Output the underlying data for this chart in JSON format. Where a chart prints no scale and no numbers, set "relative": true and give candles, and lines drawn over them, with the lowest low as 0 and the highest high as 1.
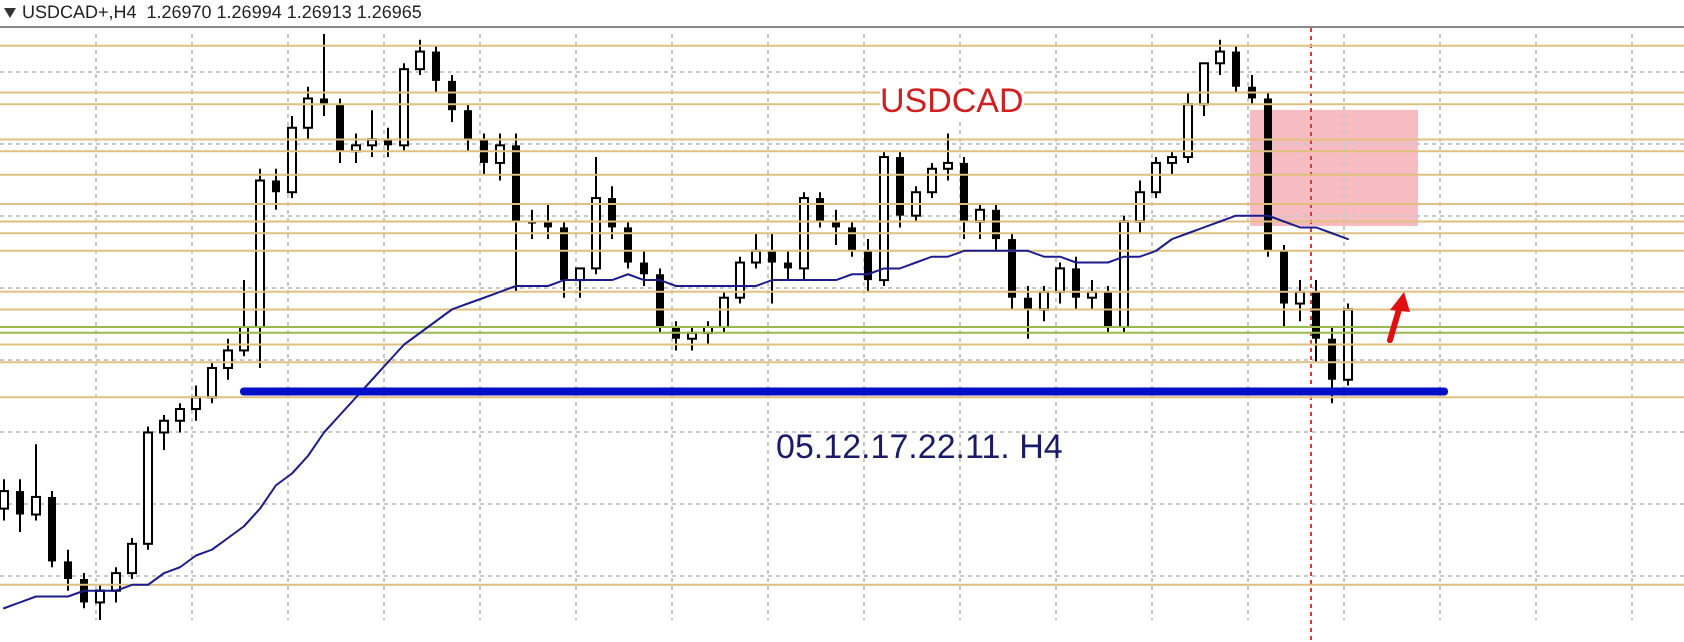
{
  "chart_data": {
    "type": "candlestick",
    "title": "USDCAD+,H4  1.26970 1.26994 1.26913 1.26965",
    "relative": true,
    "grid": true,
    "color": "#000000",
    "categories": [
      null,
      null,
      null,
      null,
      null,
      null,
      null,
      null,
      null,
      null,
      null,
      null,
      null,
      null,
      null,
      null,
      null,
      null,
      null,
      null,
      null,
      null,
      null,
      null,
      null,
      null,
      null,
      null,
      null,
      null,
      null,
      null,
      null,
      null,
      null,
      null,
      null,
      null,
      null,
      null,
      null,
      null,
      null,
      null,
      null,
      null,
      null,
      null,
      null,
      null,
      null,
      null,
      null,
      null,
      null,
      null,
      null,
      null,
      null,
      null,
      null,
      null,
      null,
      null,
      null,
      null,
      null,
      null,
      null,
      null,
      null,
      null,
      null,
      null,
      null,
      null,
      null,
      null,
      null,
      null,
      null,
      null,
      null,
      null,
      null,
      null,
      null,
      null,
      null,
      null,
      null
    ],
    "ohlc": [
      [
        0.19,
        0.24,
        0.17,
        0.22
      ],
      [
        0.22,
        0.24,
        0.15,
        0.18
      ],
      [
        0.18,
        0.3,
        0.17,
        0.21
      ],
      [
        0.21,
        0.22,
        0.09,
        0.1
      ],
      [
        0.1,
        0.12,
        0.05,
        0.07
      ],
      [
        0.07,
        0.08,
        0.02,
        0.03
      ],
      [
        0.03,
        0.06,
        0,
        0.05
      ],
      [
        0.05,
        0.09,
        0.03,
        0.08
      ],
      [
        0.08,
        0.14,
        0.07,
        0.13
      ],
      [
        0.13,
        0.33,
        0.12,
        0.32
      ],
      [
        0.32,
        0.35,
        0.29,
        0.34
      ],
      [
        0.34,
        0.37,
        0.32,
        0.36
      ],
      [
        0.36,
        0.4,
        0.34,
        0.38
      ],
      [
        0.38,
        0.44,
        0.37,
        0.43
      ],
      [
        0.43,
        0.48,
        0.41,
        0.46
      ],
      [
        0.46,
        0.58,
        0.45,
        0.5
      ],
      [
        0.5,
        0.77,
        0.43,
        0.75
      ],
      [
        0.75,
        0.77,
        0.7,
        0.73
      ],
      [
        0.73,
        0.86,
        0.72,
        0.84
      ],
      [
        0.84,
        0.91,
        0.82,
        0.89
      ],
      [
        0.89,
        1.0,
        0.86,
        0.88
      ],
      [
        0.88,
        0.89,
        0.78,
        0.8
      ],
      [
        0.8,
        0.83,
        0.78,
        0.81
      ],
      [
        0.81,
        0.87,
        0.79,
        0.82
      ],
      [
        0.82,
        0.84,
        0.79,
        0.81
      ],
      [
        0.81,
        0.95,
        0.8,
        0.94
      ],
      [
        0.94,
        0.99,
        0.93,
        0.97
      ],
      [
        0.97,
        0.98,
        0.9,
        0.92
      ],
      [
        0.92,
        0.93,
        0.85,
        0.87
      ],
      [
        0.87,
        0.88,
        0.8,
        0.82
      ],
      [
        0.82,
        0.83,
        0.76,
        0.78
      ],
      [
        0.78,
        0.83,
        0.75,
        0.81
      ],
      [
        0.81,
        0.83,
        0.56,
        0.68
      ],
      [
        0.68,
        0.7,
        0.65,
        0.68
      ],
      [
        0.68,
        0.71,
        0.65,
        0.67
      ],
      [
        0.67,
        0.68,
        0.55,
        0.58
      ],
      [
        0.58,
        0.6,
        0.55,
        0.6
      ],
      [
        0.6,
        0.79,
        0.59,
        0.72
      ],
      [
        0.72,
        0.74,
        0.65,
        0.67
      ],
      [
        0.67,
        0.68,
        0.6,
        0.61
      ],
      [
        0.61,
        0.63,
        0.57,
        0.59
      ],
      [
        0.59,
        0.6,
        0.49,
        0.5
      ],
      [
        0.5,
        0.51,
        0.46,
        0.48
      ],
      [
        0.48,
        0.5,
        0.46,
        0.49
      ],
      [
        0.49,
        0.51,
        0.47,
        0.5
      ],
      [
        0.5,
        0.56,
        0.49,
        0.55
      ],
      [
        0.55,
        0.62,
        0.54,
        0.61
      ],
      [
        0.61,
        0.66,
        0.6,
        0.63
      ],
      [
        0.63,
        0.66,
        0.54,
        0.61
      ],
      [
        0.61,
        0.63,
        0.58,
        0.6
      ],
      [
        0.6,
        0.73,
        0.58,
        0.72
      ],
      [
        0.72,
        0.73,
        0.67,
        0.68
      ],
      [
        0.68,
        0.7,
        0.64,
        0.67
      ],
      [
        0.67,
        0.68,
        0.62,
        0.63
      ],
      [
        0.63,
        0.65,
        0.56,
        0.58
      ],
      [
        0.58,
        0.8,
        0.57,
        0.79
      ],
      [
        0.79,
        0.8,
        0.67,
        0.69
      ],
      [
        0.69,
        0.74,
        0.68,
        0.73
      ],
      [
        0.73,
        0.78,
        0.72,
        0.77
      ],
      [
        0.77,
        0.83,
        0.75,
        0.78
      ],
      [
        0.78,
        0.79,
        0.65,
        0.68
      ],
      [
        0.68,
        0.71,
        0.65,
        0.7
      ],
      [
        0.7,
        0.71,
        0.63,
        0.65
      ],
      [
        0.65,
        0.66,
        0.53,
        0.55
      ],
      [
        0.55,
        0.57,
        0.48,
        0.53
      ],
      [
        0.53,
        0.57,
        0.51,
        0.56
      ],
      [
        0.56,
        0.61,
        0.54,
        0.6
      ],
      [
        0.6,
        0.62,
        0.53,
        0.55
      ],
      [
        0.55,
        0.58,
        0.53,
        0.56
      ],
      [
        0.56,
        0.57,
        0.49,
        0.5
      ],
      [
        0.5,
        0.69,
        0.49,
        0.68
      ],
      [
        0.68,
        0.75,
        0.66,
        0.73
      ],
      [
        0.73,
        0.79,
        0.72,
        0.78
      ],
      [
        0.78,
        0.8,
        0.76,
        0.79
      ],
      [
        0.79,
        0.9,
        0.78,
        0.88
      ],
      [
        0.88,
        0.95,
        0.86,
        0.95
      ],
      [
        0.95,
        0.99,
        0.93,
        0.97
      ],
      [
        0.97,
        0.98,
        0.9,
        0.91
      ],
      [
        0.91,
        0.93,
        0.88,
        0.89
      ],
      [
        0.89,
        0.9,
        0.62,
        0.63
      ],
      [
        0.63,
        0.64,
        0.5,
        0.54
      ],
      [
        0.54,
        0.58,
        0.51,
        0.56
      ],
      [
        0.56,
        0.58,
        0.44,
        0.48
      ],
      [
        0.48,
        0.5,
        0.37,
        0.41
      ],
      [
        0.41,
        0.54,
        0.4,
        0.53
      ],
      null,
      null,
      null,
      null,
      null,
      null
    ],
    "series": [
      {
        "type": "line",
        "color": "#1c1c8c",
        "values": [
          0.02,
          0.03,
          0.04,
          0.04,
          0.04,
          0.05,
          0.05,
          0.05,
          0.06,
          0.06,
          0.08,
          0.09,
          0.11,
          0.12,
          0.14,
          0.16,
          0.19,
          0.23,
          0.25,
          0.28,
          0.32,
          0.35,
          0.38,
          0.41,
          0.44,
          0.47,
          0.49,
          0.51,
          0.53,
          0.54,
          0.55,
          0.56,
          0.57,
          0.57,
          0.57,
          0.58,
          0.58,
          0.58,
          0.58,
          0.59,
          0.58,
          0.58,
          0.57,
          0.57,
          0.57,
          0.57,
          0.57,
          0.57,
          0.58,
          0.58,
          0.58,
          0.58,
          0.58,
          0.59,
          0.59,
          0.6,
          0.6,
          0.61,
          0.62,
          0.62,
          0.63,
          0.63,
          0.63,
          0.63,
          0.63,
          0.62,
          0.62,
          0.61,
          0.61,
          0.61,
          0.62,
          0.62,
          0.63,
          0.65,
          0.66,
          0.67,
          0.68,
          0.69,
          0.69,
          0.69,
          0.68,
          0.67,
          0.67,
          0.66,
          0.65,
          null,
          null,
          null,
          null,
          null,
          null
        ]
      },
      {
        "type": "line",
        "color": "#0010c8",
        "values": [
          null,
          null,
          null,
          null,
          null,
          null,
          null,
          null,
          null,
          null,
          null,
          null,
          null,
          null,
          null,
          0.39,
          0.39,
          0.39,
          0.39,
          0.39,
          0.39,
          0.39,
          0.39,
          0.39,
          0.39,
          0.39,
          0.39,
          0.39,
          0.39,
          0.39,
          0.39,
          0.39,
          0.39,
          0.39,
          0.39,
          0.39,
          0.39,
          0.39,
          0.39,
          0.39,
          0.39,
          0.39,
          0.39,
          0.39,
          0.39,
          0.39,
          0.39,
          0.39,
          0.39,
          0.39,
          0.39,
          0.39,
          0.39,
          0.39,
          0.39,
          0.39,
          0.39,
          0.39,
          0.39,
          0.39,
          0.39,
          0.39,
          0.39,
          0.39,
          0.39,
          0.39,
          0.39,
          0.39,
          0.39,
          0.39,
          0.39,
          0.39,
          0.39,
          0.39,
          0.39,
          0.39,
          0.39,
          0.39,
          0.39,
          0.39,
          0.39,
          0.39,
          0.39,
          0.39,
          0.39,
          0.39,
          0.39,
          0.39,
          0.39,
          0.39,
          0.39
        ]
      }
    ],
    "ref_lines": [
      {
        "axis": "y",
        "value": 0.98,
        "color": "#e0c080"
      },
      {
        "axis": "y",
        "value": 0.9,
        "color": "#e0c080"
      },
      {
        "axis": "y",
        "value": 0.88,
        "color": "#e0c080"
      },
      {
        "axis": "y",
        "value": 0.82,
        "color": "#e0c080"
      },
      {
        "axis": "y",
        "value": 0.8,
        "color": "#e0c080"
      },
      {
        "axis": "y",
        "value": 0.76,
        "color": "#e0c080"
      },
      {
        "axis": "y",
        "value": 0.71,
        "color": "#e0c080"
      },
      {
        "axis": "y",
        "value": 0.68,
        "color": "#e0c080"
      },
      {
        "axis": "y",
        "value": 0.66,
        "color": "#e0c080"
      },
      {
        "axis": "y",
        "value": 0.63,
        "color": "#e0c080"
      },
      {
        "axis": "y",
        "value": 0.56,
        "color": "#e0c080"
      },
      {
        "axis": "y",
        "value": 0.53,
        "color": "#e0c080"
      },
      {
        "axis": "y",
        "value": 0.5,
        "color": "#98b850"
      },
      {
        "axis": "y",
        "value": 0.49,
        "color": "#98b850"
      },
      {
        "axis": "y",
        "value": 0.47,
        "color": "#e0c080"
      },
      {
        "axis": "y",
        "value": 0.44,
        "color": "#e0c080"
      },
      {
        "axis": "y",
        "value": 0.38,
        "color": "#e0c080"
      },
      {
        "axis": "y",
        "value": 0.06,
        "color": "#e0c080"
      }
    ],
    "annotations": [
      "USDCAD",
      "05.12.17.22.11. H4"
    ]
  }
}
